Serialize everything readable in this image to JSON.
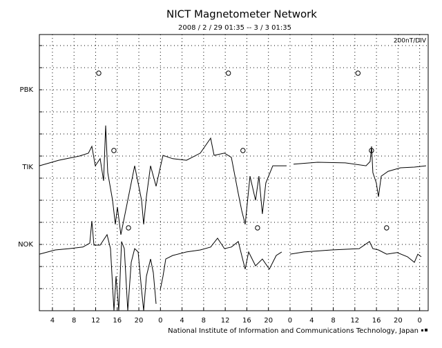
{
  "chart_data": {
    "type": "line",
    "title": "NICT Magnetometer Network",
    "subtitle": "2008 / 2 / 29  01:35 -- 3 / 3  01:35",
    "scale_label": "200nT/DIV",
    "footer": "National Institute of Information and Communications Technology, Japan",
    "xlim": [
      1.58,
      73.58
    ],
    "xticks": [
      4,
      8,
      12,
      16,
      20,
      {
        "value": 24,
        "label": "0"
      },
      {
        "value": 28,
        "label": "4"
      },
      {
        "value": 32,
        "label": "8"
      },
      {
        "value": 36,
        "label": "12"
      },
      {
        "value": 40,
        "label": "16"
      },
      {
        "value": 44,
        "label": "20"
      },
      {
        "value": 48,
        "label": "0"
      },
      {
        "value": 52,
        "label": "4"
      },
      {
        "value": 56,
        "label": "8"
      },
      {
        "value": 60,
        "label": "12"
      },
      {
        "value": 64,
        "label": "16"
      },
      {
        "value": 68,
        "label": "20"
      },
      {
        "value": 72,
        "label": "0"
      }
    ],
    "ylim": [
      0,
      12.5
    ],
    "yticks": [
      {
        "value": 10,
        "label": "PBK"
      },
      {
        "value": 6.5,
        "label": "TIK"
      },
      {
        "value": 3,
        "label": "NOK"
      }
    ],
    "ygrid": [
      0,
      1,
      2,
      3,
      4,
      5,
      6,
      7,
      8,
      9,
      10,
      11,
      12
    ],
    "grid": true,
    "series": [
      {
        "color": "#000000",
        "x": [
          1.58,
          5.16,
          9.0,
          10.66,
          11.3,
          11.94,
          12.83,
          13.47,
          13.86,
          14.24,
          15.13,
          15.65,
          16.03,
          16.67,
          17.31,
          18.59,
          19.23,
          20.51,
          20.89,
          21.4,
          22.17,
          23.19,
          24.47,
          26.26,
          28.82,
          31.38,
          33.29,
          33.93,
          35.85,
          37.13,
          38.41,
          39.05,
          39.69,
          40.07,
          40.58,
          41.61,
          42.24,
          42.88,
          43.52,
          44.8,
          47.36,
          null,
          48.64,
          53.11,
          58.23,
          62.07,
          62.83,
          63.09,
          63.34,
          63.98,
          64.37,
          64.88,
          66.16,
          68.46,
          71.02,
          73.19
        ],
        "values": [
          6.56,
          6.81,
          7.0,
          7.13,
          7.44,
          6.56,
          6.88,
          5.88,
          8.38,
          6.25,
          5.0,
          3.91,
          4.69,
          3.44,
          4.22,
          5.78,
          6.56,
          5.0,
          3.91,
          5.16,
          6.56,
          5.63,
          7.03,
          6.88,
          6.81,
          7.13,
          7.81,
          7.03,
          7.13,
          6.94,
          5.31,
          4.53,
          3.91,
          4.84,
          6.09,
          5.0,
          6.09,
          4.38,
          5.78,
          6.56,
          6.56,
          null,
          6.63,
          6.72,
          6.69,
          6.56,
          6.75,
          7.44,
          6.25,
          5.78,
          5.16,
          6.09,
          6.31,
          6.47,
          6.5,
          6.56
        ]
      },
      {
        "color": "#000000",
        "x": [
          1.58,
          4.52,
          7.08,
          9.64,
          10.92,
          11.3,
          11.68,
          12.83,
          14.11,
          14.75,
          15.39,
          15.77,
          16.29,
          16.8,
          17.31,
          17.95,
          18.59,
          19.23,
          19.87,
          20.51,
          20.89,
          21.4,
          22.17,
          22.68,
          23.19,
          null,
          23.96,
          24.47,
          24.98,
          26.26,
          28.82,
          31.38,
          33.29,
          34.57,
          35.85,
          37.13,
          38.41,
          39.05,
          39.69,
          40.33,
          41.61,
          42.88,
          44.16,
          44.8,
          45.44,
          46.46,
          null,
          48.0,
          50.56,
          55.67,
          60.79,
          62.71,
          63.34,
          64.37,
          65.9,
          67.82,
          69.74,
          71.02,
          71.66,
          72.3
        ],
        "values": [
          2.56,
          2.75,
          2.81,
          2.88,
          3.06,
          4.06,
          2.97,
          2.97,
          3.44,
          2.81,
          0,
          1.56,
          0,
          3.13,
          2.81,
          0,
          2.19,
          2.81,
          2.66,
          0.94,
          0,
          1.56,
          2.34,
          1.72,
          0.31,
          null,
          0.94,
          1.56,
          2.34,
          2.5,
          2.66,
          2.75,
          2.88,
          3.28,
          2.81,
          2.88,
          3.13,
          2.5,
          1.88,
          2.66,
          2.03,
          2.34,
          1.88,
          2.19,
          2.5,
          2.66,
          null,
          2.56,
          2.66,
          2.75,
          2.81,
          3.13,
          2.81,
          2.75,
          2.56,
          2.63,
          2.44,
          2.19,
          2.56,
          2.44
        ]
      }
    ],
    "markers": {
      "x": [
        12.58,
        36.58,
        60.58,
        15.38,
        39.28,
        63.08,
        18.08,
        41.98,
        65.88
      ],
      "values": [
        10.75,
        10.75,
        10.75,
        7.25,
        7.25,
        7.25,
        3.75,
        3.75,
        3.75
      ]
    }
  }
}
